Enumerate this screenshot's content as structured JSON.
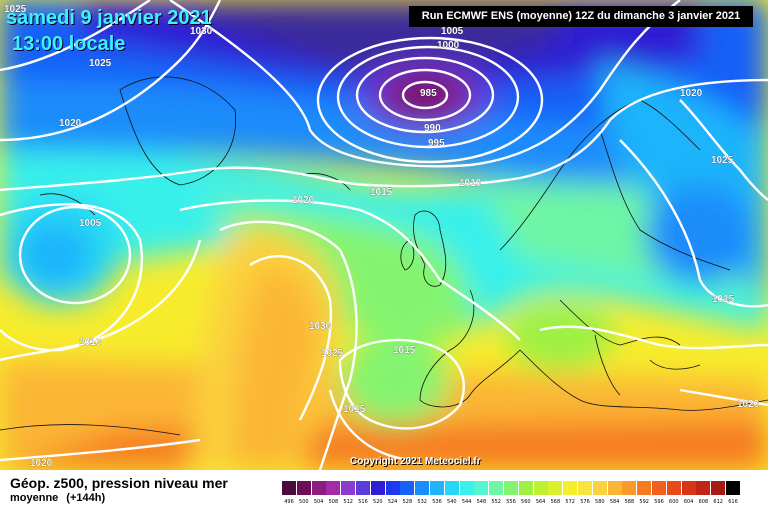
{
  "header": {
    "date": "samedi 9 janvier 2021",
    "time": "13:00 locale",
    "run": "Run ECMWF ENS (moyenne) 12Z du dimanche 3 janvier 2021"
  },
  "map": {
    "copyright": "Copyright 2021 Meteociel.fr",
    "isobar_labels": [
      "1025",
      "1030",
      "1025",
      "1020",
      "1005",
      "1000",
      "985",
      "990",
      "995",
      "1020",
      "1025",
      "1015",
      "1010",
      "1020",
      "1005",
      "1030",
      "1010",
      "1025",
      "1015",
      "1015",
      "1015",
      "1020",
      "1020"
    ]
  },
  "footer": {
    "title_line1": "Géop. z500, pression niveau mer",
    "title_line2a": "moyenne",
    "title_line2b": "(+144h)"
  },
  "legend": {
    "ticks": [
      "496",
      "500",
      "504",
      "508",
      "512",
      "516",
      "520",
      "524",
      "528",
      "532",
      "536",
      "540",
      "544",
      "548",
      "552",
      "556",
      "560",
      "564",
      "568",
      "572",
      "576",
      "580",
      "584",
      "588",
      "592",
      "596",
      "600",
      "604",
      "608",
      "612",
      "616"
    ],
    "colors": [
      "#4b0a3e",
      "#6e0e57",
      "#8a1c82",
      "#a52aa8",
      "#8c3ccd",
      "#5c3bdc",
      "#2e1fd4",
      "#1d39f0",
      "#1760f8",
      "#1b8cfb",
      "#1fb4fb",
      "#27d6f6",
      "#39f0ea",
      "#55f5cf",
      "#6ef5a5",
      "#84f470",
      "#9ef044",
      "#bdf033",
      "#dcef2e",
      "#f4ee2c",
      "#fae33c",
      "#fbd13d",
      "#fbb635",
      "#f9982b",
      "#f67a22",
      "#f25f1c",
      "#e94a1a",
      "#d83518",
      "#c42418",
      "#a81a16",
      "#000000"
    ]
  }
}
